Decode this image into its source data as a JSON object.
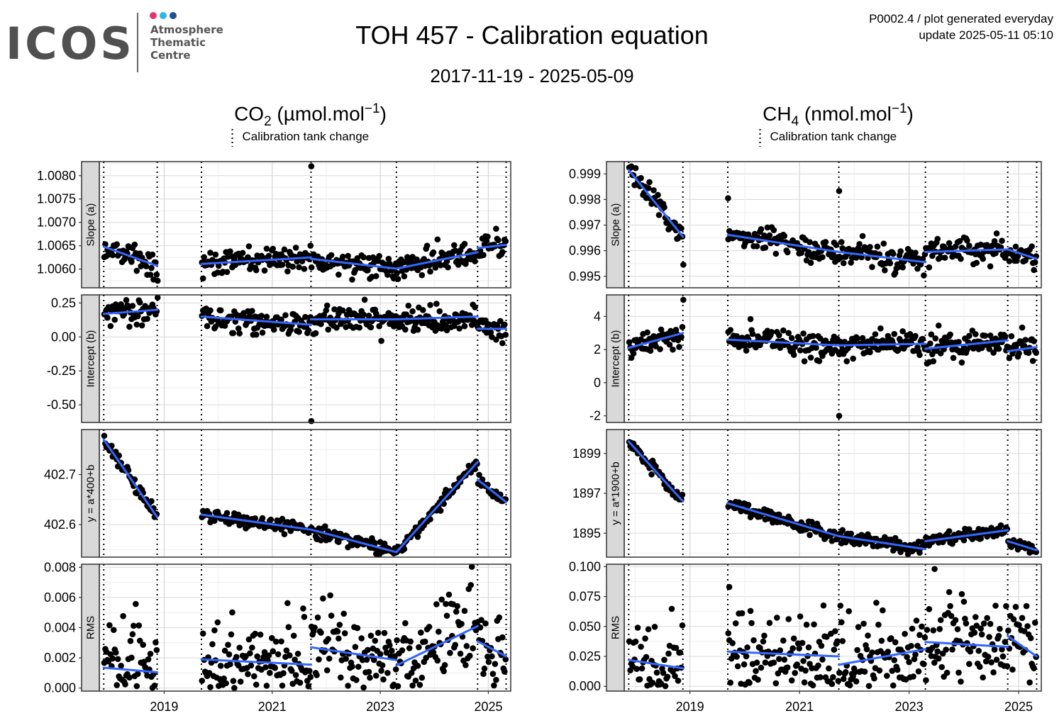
{
  "header": {
    "title": "TOH 457 - Calibration equation",
    "date_range": "2017-11-19 - 2025-05-09",
    "meta_line1": "P0002.4 / plot generated everyday",
    "meta_line2": "update  2025-05-11 05:10"
  },
  "logo": {
    "word": "ICOS",
    "lines": [
      "Atmosphere",
      "Thematic",
      "Centre"
    ],
    "dot_colors": [
      "#e6336f",
      "#2bb5e8",
      "#1d4f91"
    ]
  },
  "legend_label": "Calibration tank change",
  "colors": {
    "points": "#000000",
    "trend": "#3366ff",
    "strip_bg": "#d9d9d9",
    "grid_major": "#d8d8d8",
    "grid_minor": "#eeeeee"
  },
  "chart_data": [
    {
      "type": "scatter",
      "gas": "CO2",
      "title": "CO2 (µmol.mol-1)",
      "title_parts": {
        "base": "CO",
        "sub": "2",
        "unit_open": " (µmol.mol",
        "sup": "−1",
        "unit_close": ")"
      },
      "x_tick_labels": [
        "2019",
        "2021",
        "2023",
        "2025"
      ],
      "xlim": [
        "2017-10-20",
        "2025-06-01"
      ],
      "calibration_tank_changes": [
        "2017-11-19",
        "2018-11-15",
        "2019-09-10",
        "2021-09-20",
        "2023-04-20",
        "2024-10-20",
        "2025-05-01"
      ],
      "panels": [
        {
          "strip": "Slope (a)",
          "ylim": [
            1.0056,
            1.0083
          ],
          "y_ticks": [
            1.006,
            1.0065,
            1.007,
            1.0075,
            1.008
          ],
          "y_tick_labels": [
            "1.0060",
            "1.0065",
            "1.0070",
            "1.0075",
            "1.0080"
          ],
          "trend_segments": [
            {
              "x": [
                "2017-11-19",
                "2018-11-15"
              ],
              "y": [
                1.00648,
                1.00607
              ]
            },
            {
              "x": [
                "2019-09-10",
                "2021-09-20"
              ],
              "y": [
                1.00611,
                1.00625
              ]
            },
            {
              "x": [
                "2021-09-20",
                "2023-04-20"
              ],
              "y": [
                1.00622,
                1.00601
              ]
            },
            {
              "x": [
                "2023-04-20",
                "2024-10-20"
              ],
              "y": [
                1.00601,
                1.00636
              ]
            },
            {
              "x": [
                "2024-10-20",
                "2025-05-01"
              ],
              "y": [
                1.00645,
                1.00652
              ]
            }
          ],
          "outliers": [
            {
              "x": "2018-11-18",
              "y": 1.00575
            },
            {
              "x": "2021-09-22",
              "y": 1.0082
            }
          ]
        },
        {
          "strip": "Intercept (b)",
          "ylim": [
            -0.63,
            0.31
          ],
          "y_ticks": [
            -0.5,
            -0.25,
            0,
            0.25
          ],
          "y_tick_labels": [
            "-0.50",
            "-0.25",
            "0.00",
            "0.25"
          ],
          "trend_segments": [
            {
              "x": [
                "2017-11-19",
                "2018-11-15"
              ],
              "y": [
                0.17,
                0.2
              ]
            },
            {
              "x": [
                "2019-09-10",
                "2021-09-20"
              ],
              "y": [
                0.15,
                0.09
              ]
            },
            {
              "x": [
                "2021-09-20",
                "2023-04-20"
              ],
              "y": [
                0.13,
                0.13
              ]
            },
            {
              "x": [
                "2023-04-20",
                "2024-10-20"
              ],
              "y": [
                0.13,
                0.15
              ]
            },
            {
              "x": [
                "2024-10-20",
                "2025-05-01"
              ],
              "y": [
                0.06,
                0.06
              ]
            }
          ],
          "outliers": [
            {
              "x": "2021-09-22",
              "y": -0.62
            },
            {
              "x": "2018-11-18",
              "y": 0.29
            }
          ]
        },
        {
          "strip": "y = a*400+b",
          "ylim": [
            402.535,
            402.79
          ],
          "y_ticks": [
            402.6,
            402.7
          ],
          "y_tick_labels": [
            "402.6",
            "402.7"
          ],
          "trend_segments": [
            {
              "x": [
                "2017-11-19",
                "2018-11-15"
              ],
              "y": [
                402.77,
                402.615
              ]
            },
            {
              "x": [
                "2019-09-10",
                "2021-09-20"
              ],
              "y": [
                402.62,
                402.59
              ]
            },
            {
              "x": [
                "2021-09-20",
                "2023-04-20"
              ],
              "y": [
                402.59,
                402.545
              ]
            },
            {
              "x": [
                "2023-04-20",
                "2024-10-20"
              ],
              "y": [
                402.545,
                402.725
              ]
            },
            {
              "x": [
                "2024-10-20",
                "2025-05-01"
              ],
              "y": [
                402.69,
                402.645
              ]
            }
          ],
          "outliers": []
        },
        {
          "strip": "RMS",
          "ylim": [
            -0.0002,
            0.0082
          ],
          "y_ticks": [
            0,
            0.002,
            0.004,
            0.006,
            0.008
          ],
          "y_tick_labels": [
            "0.000",
            "0.002",
            "0.004",
            "0.006",
            "0.008"
          ],
          "trend_segments": [
            {
              "x": [
                "2017-11-19",
                "2018-11-15"
              ],
              "y": [
                0.00135,
                0.00105
              ]
            },
            {
              "x": [
                "2019-09-10",
                "2021-09-20"
              ],
              "y": [
                0.0019,
                0.00155
              ]
            },
            {
              "x": [
                "2021-09-20",
                "2023-04-20"
              ],
              "y": [
                0.0027,
                0.00185
              ]
            },
            {
              "x": [
                "2023-04-20",
                "2024-10-20"
              ],
              "y": [
                0.0015,
                0.0041
              ]
            },
            {
              "x": [
                "2024-10-20",
                "2025-05-01"
              ],
              "y": [
                0.0031,
                0.0021
              ]
            }
          ],
          "outliers": []
        }
      ]
    },
    {
      "type": "scatter",
      "gas": "CH4",
      "title": "CH4 (nmol.mol-1)",
      "title_parts": {
        "base": "CH",
        "sub": "4",
        "unit_open": " (nmol.mol",
        "sup": "−1",
        "unit_close": ")"
      },
      "x_tick_labels": [
        "2019",
        "2021",
        "2023",
        "2025"
      ],
      "xlim": [
        "2017-10-20",
        "2025-06-01"
      ],
      "calibration_tank_changes": [
        "2017-11-19",
        "2018-11-15",
        "2019-09-10",
        "2021-09-20",
        "2023-04-20",
        "2024-10-20",
        "2025-05-01"
      ],
      "panels": [
        {
          "strip": "Slope (a)",
          "ylim": [
            0.99455,
            0.99948
          ],
          "y_ticks": [
            0.995,
            0.996,
            0.997,
            0.998,
            0.999
          ],
          "y_tick_labels": [
            "0.995",
            "0.996",
            "0.997",
            "0.998",
            "0.999"
          ],
          "trend_segments": [
            {
              "x": [
                "2017-11-19",
                "2018-11-15"
              ],
              "y": [
                0.99915,
                0.99655
              ]
            },
            {
              "x": [
                "2019-09-10",
                "2021-09-20"
              ],
              "y": [
                0.99662,
                0.99595
              ]
            },
            {
              "x": [
                "2021-09-20",
                "2023-04-20"
              ],
              "y": [
                0.99595,
                0.99555
              ]
            },
            {
              "x": [
                "2023-04-20",
                "2024-10-20"
              ],
              "y": [
                0.99595,
                0.99605
              ]
            },
            {
              "x": [
                "2024-10-20",
                "2025-05-01"
              ],
              "y": [
                0.99605,
                0.99568
              ]
            }
          ],
          "outliers": [
            {
              "x": "2018-11-18",
              "y": 0.99545
            },
            {
              "x": "2019-09-12",
              "y": 0.99805
            },
            {
              "x": "2021-09-22",
              "y": 0.99833
            }
          ]
        },
        {
          "strip": "Intercept (b)",
          "ylim": [
            -2.4,
            5.3
          ],
          "y_ticks": [
            -2,
            0,
            2,
            4
          ],
          "y_tick_labels": [
            "-2",
            "0",
            "2",
            "4"
          ],
          "trend_segments": [
            {
              "x": [
                "2017-11-19",
                "2018-11-15"
              ],
              "y": [
                2.1,
                3.0
              ]
            },
            {
              "x": [
                "2019-09-10",
                "2021-09-20"
              ],
              "y": [
                2.6,
                2.25
              ]
            },
            {
              "x": [
                "2021-09-20",
                "2023-04-20"
              ],
              "y": [
                2.25,
                2.35
              ]
            },
            {
              "x": [
                "2023-04-20",
                "2024-10-20"
              ],
              "y": [
                2.05,
                2.55
              ]
            },
            {
              "x": [
                "2024-10-20",
                "2025-05-01"
              ],
              "y": [
                1.9,
                2.15
              ]
            }
          ],
          "outliers": [
            {
              "x": "2021-09-22",
              "y": -2.0
            },
            {
              "x": "2018-11-18",
              "y": 5.0
            }
          ]
        },
        {
          "strip": "y = a*1900+b",
          "ylim": [
            1893.8,
            1900.2
          ],
          "y_ticks": [
            1895,
            1897,
            1899
          ],
          "y_tick_labels": [
            "1895",
            "1897",
            "1899"
          ],
          "trend_segments": [
            {
              "x": [
                "2017-11-19",
                "2018-11-15"
              ],
              "y": [
                1899.6,
                1896.6
              ]
            },
            {
              "x": [
                "2019-09-10",
                "2021-09-20"
              ],
              "y": [
                1896.5,
                1894.85
              ]
            },
            {
              "x": [
                "2021-09-20",
                "2023-04-20"
              ],
              "y": [
                1894.85,
                1894.2
              ]
            },
            {
              "x": [
                "2023-04-20",
                "2024-10-20"
              ],
              "y": [
                1894.6,
                1895.15
              ]
            },
            {
              "x": [
                "2024-10-20",
                "2025-05-01"
              ],
              "y": [
                1894.6,
                1894.15
              ]
            }
          ],
          "outliers": []
        },
        {
          "strip": "RMS",
          "ylim": [
            -0.004,
            0.102
          ],
          "y_ticks": [
            0,
            0.025,
            0.05,
            0.075,
            0.1
          ],
          "y_tick_labels": [
            "0.000",
            "0.025",
            "0.050",
            "0.075",
            "0.100"
          ],
          "trend_segments": [
            {
              "x": [
                "2017-11-19",
                "2018-11-15"
              ],
              "y": [
                0.022,
                0.015
              ]
            },
            {
              "x": [
                "2019-09-10",
                "2021-09-20"
              ],
              "y": [
                0.029,
                0.025
              ]
            },
            {
              "x": [
                "2021-09-20",
                "2023-04-20"
              ],
              "y": [
                0.018,
                0.031
              ]
            },
            {
              "x": [
                "2023-04-20",
                "2024-10-20"
              ],
              "y": [
                0.037,
                0.033
              ]
            },
            {
              "x": [
                "2024-10-20",
                "2025-05-01"
              ],
              "y": [
                0.042,
                0.025
              ]
            }
          ],
          "outliers": [
            {
              "x": "2019-09-20",
              "y": 0.083
            },
            {
              "x": "2023-06-20",
              "y": 0.098
            }
          ]
        }
      ]
    }
  ]
}
